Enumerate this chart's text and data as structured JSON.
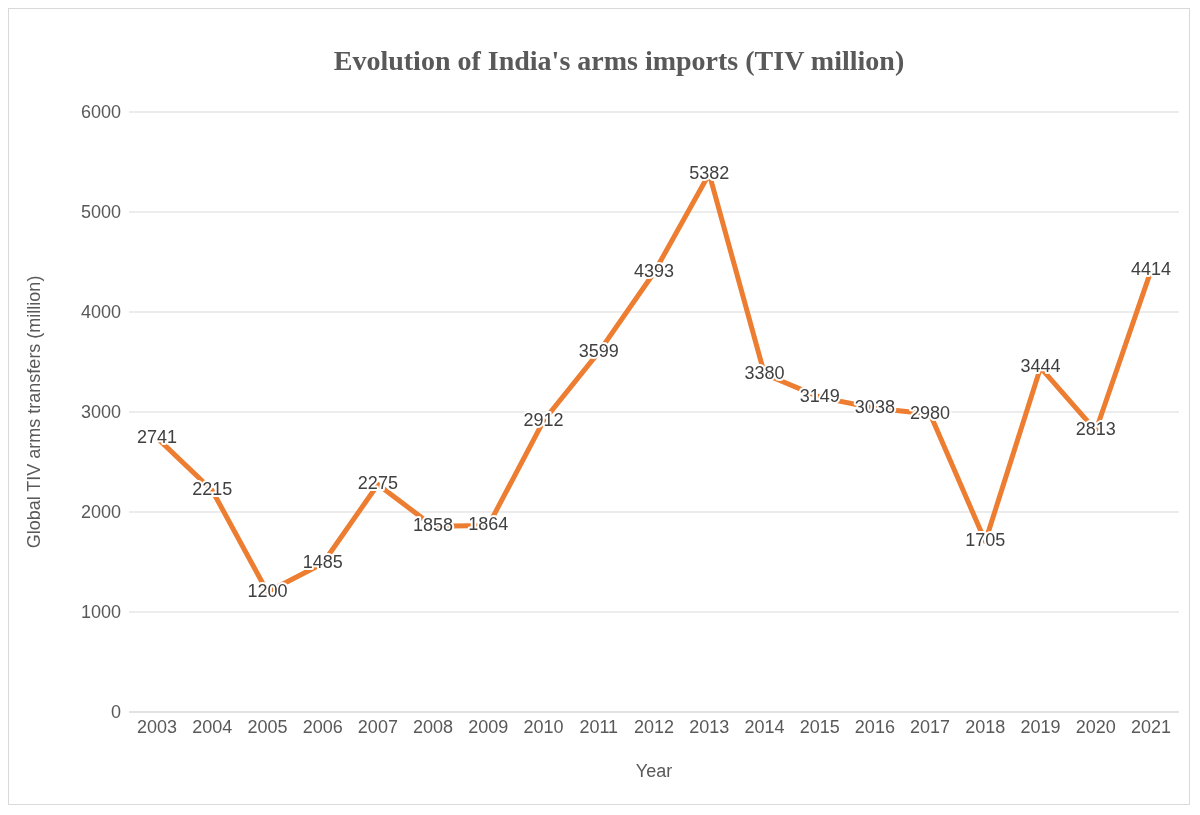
{
  "chart_data": {
    "type": "line",
    "title": "Evolution of India's arms imports (TIV million)",
    "xlabel": "Year",
    "ylabel": "Global TIV arms transfers (million)",
    "categories": [
      "2003",
      "2004",
      "2005",
      "2006",
      "2007",
      "2008",
      "2009",
      "2010",
      "2011",
      "2012",
      "2013",
      "2014",
      "2015",
      "2016",
      "2017",
      "2018",
      "2019",
      "2020",
      "2021"
    ],
    "values": [
      2741,
      2215,
      1200,
      1485,
      2275,
      1858,
      1864,
      2912,
      3599,
      4393,
      5382,
      3380,
      3149,
      3038,
      2980,
      1705,
      3444,
      2813,
      4414
    ],
    "color": "#ed7d31",
    "ylim": [
      0,
      6000
    ],
    "yticks": [
      0,
      1000,
      2000,
      3000,
      4000,
      5000,
      6000
    ],
    "grid": "y",
    "marker": "none",
    "line_style": "solid",
    "data_labels": true,
    "legend": false
  }
}
